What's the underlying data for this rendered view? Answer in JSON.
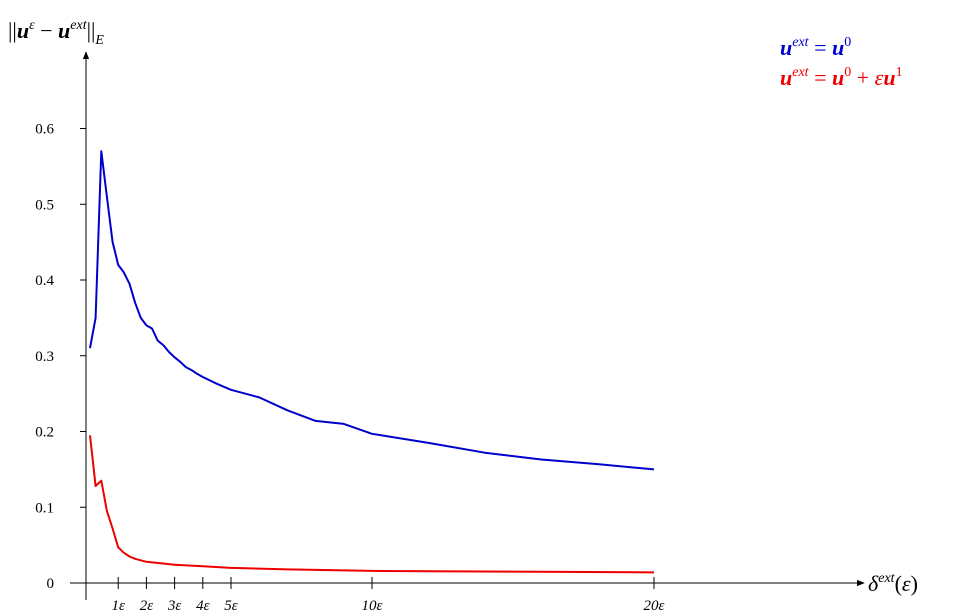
{
  "chart_data": {
    "type": "line",
    "xlabel": "δext(ε)",
    "ylabel": "||uε − uext||E",
    "ylim": [
      0,
      0.6
    ],
    "y_ticks": [
      0,
      0.1,
      0.2,
      0.3,
      0.4,
      0.5,
      0.6
    ],
    "y_tick_labels": [
      "0",
      "0.1",
      "0.2",
      "0.3",
      "0.4",
      "0.5",
      "0.6"
    ],
    "x_ticks": [
      1,
      2,
      3,
      4,
      5,
      10,
      20
    ],
    "x_tick_labels": [
      "1ε",
      "2ε",
      "3ε",
      "4ε",
      "5ε",
      "10ε",
      "20ε"
    ],
    "xlim": [
      0,
      27
    ],
    "grid": false,
    "legend_position": "top-right",
    "series": [
      {
        "name": "uext = u0",
        "color": "#0000cc",
        "x": [
          0,
          0.2,
          0.4,
          0.6,
          0.8,
          1.0,
          1.2,
          1.4,
          1.6,
          1.8,
          2.0,
          2.2,
          2.4,
          2.6,
          2.8,
          3.0,
          3.2,
          3.4,
          3.6,
          3.8,
          4.0,
          4.5,
          5.0,
          6.0,
          7.0,
          8.0,
          9.0,
          10.0,
          12.0,
          14.0,
          16.0,
          18.0,
          20.0
        ],
        "y": [
          0.31,
          0.35,
          0.57,
          0.51,
          0.45,
          0.42,
          0.41,
          0.395,
          0.37,
          0.35,
          0.34,
          0.336,
          0.32,
          0.314,
          0.305,
          0.298,
          0.292,
          0.285,
          0.281,
          0.276,
          0.272,
          0.263,
          0.255,
          0.245,
          0.228,
          0.214,
          0.21,
          0.197,
          0.185,
          0.172,
          0.163,
          0.157,
          0.15
        ]
      },
      {
        "name": "uext = u0 + εu1",
        "color": "#ee0000",
        "x": [
          0,
          0.2,
          0.4,
          0.6,
          0.8,
          1.0,
          1.2,
          1.4,
          1.6,
          1.8,
          2.0,
          2.5,
          3.0,
          4.0,
          5.0,
          7.0,
          10.0,
          15.0,
          20.0
        ],
        "y": [
          0.195,
          0.128,
          0.135,
          0.095,
          0.072,
          0.047,
          0.04,
          0.035,
          0.032,
          0.03,
          0.028,
          0.026,
          0.024,
          0.022,
          0.02,
          0.018,
          0.016,
          0.015,
          0.014
        ]
      }
    ]
  }
}
